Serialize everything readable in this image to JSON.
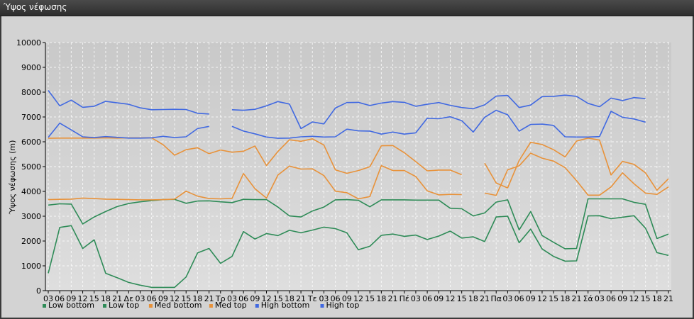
{
  "window": {
    "title": "Ύψος νέφωσης"
  },
  "chart_data": {
    "type": "line",
    "title": "",
    "ylabel": "Ύψος νέφωσης (m)",
    "xlabel": "",
    "ylim": [
      0,
      10000
    ],
    "yticks": [
      0,
      1000,
      2000,
      3000,
      4000,
      5000,
      6000,
      7000,
      8000,
      9000,
      10000
    ],
    "grid": true,
    "legend_position": "bottom-left",
    "x_tick_labels": [
      "03",
      "06",
      "09",
      "12",
      "15",
      "18",
      "21",
      "Δε",
      "03",
      "06",
      "09",
      "12",
      "15",
      "18",
      "21",
      "Τρ",
      "03",
      "06",
      "09",
      "12",
      "15",
      "18",
      "21",
      "Τε",
      "03",
      "06",
      "09",
      "12",
      "15",
      "18",
      "21",
      "Πέ",
      "03",
      "06",
      "09",
      "12",
      "15",
      "18",
      "21",
      "Πα",
      "03",
      "06",
      "09",
      "12",
      "15",
      "18",
      "21",
      "Σά",
      "03",
      "06",
      "09",
      "12",
      "15",
      "18",
      "21"
    ],
    "series": [
      {
        "name": "Low bottom",
        "color": "#2e8b57",
        "values": [
          700,
          2550,
          2620,
          1700,
          2050,
          700,
          520,
          330,
          220,
          130,
          130,
          130,
          550,
          1520,
          1700,
          1100,
          1380,
          2380,
          2080,
          2300,
          2220,
          2430,
          2330,
          2440,
          2560,
          2500,
          2330,
          1650,
          1790,
          2230,
          2280,
          2190,
          2240,
          2060,
          2200,
          2400,
          2120,
          2170,
          1980,
          2970,
          3000,
          1930,
          2480,
          1680,
          1380,
          1190,
          1200,
          3010,
          3020,
          2900,
          2960,
          3020,
          2520,
          1530,
          1420
        ]
      },
      {
        "name": "Low top",
        "color": "#2e8b57",
        "values": [
          3450,
          3500,
          3490,
          2690,
          2970,
          3190,
          3390,
          3510,
          3580,
          3630,
          3670,
          3680,
          3520,
          3610,
          3620,
          3580,
          3550,
          3680,
          3670,
          3670,
          3370,
          3010,
          2970,
          3210,
          3370,
          3660,
          3670,
          3640,
          3380,
          3660,
          3660,
          3660,
          3650,
          3650,
          3650,
          3320,
          3300,
          3010,
          3130,
          3570,
          3660,
          2450,
          3190,
          2220,
          1950,
          1690,
          1700,
          3700,
          3700,
          3700,
          3700,
          3560,
          3480,
          2100,
          2280
        ]
      },
      {
        "name": "Med bottom",
        "color": "#e8923a",
        "values": [
          3670,
          3680,
          3690,
          3730,
          3710,
          3690,
          3680,
          3670,
          3660,
          3660,
          3670,
          3690,
          4010,
          3810,
          3710,
          3700,
          3720,
          4720,
          4110,
          3730,
          4660,
          5020,
          4900,
          4910,
          4640,
          4010,
          3950,
          3700,
          3790,
          5040,
          4840,
          4840,
          4600,
          4020,
          3860,
          3880,
          3870,
          null,
          3930,
          3840,
          4870,
          5030,
          5540,
          5340,
          5220,
          4960,
          4430,
          3850,
          3850,
          4180,
          4750,
          4310,
          3930,
          3880,
          4180
        ]
      },
      {
        "name": "Med top",
        "color": "#e8923a",
        "values": [
          6140,
          6150,
          6150,
          6150,
          6150,
          6160,
          6150,
          6160,
          6160,
          6160,
          5880,
          5460,
          5680,
          5760,
          5520,
          5670,
          5580,
          5620,
          5830,
          5040,
          5610,
          6080,
          6020,
          6120,
          5870,
          4870,
          4730,
          4840,
          4990,
          5840,
          5850,
          5560,
          5200,
          4830,
          4860,
          4860,
          4670,
          null,
          5140,
          4340,
          4140,
          5250,
          5980,
          5890,
          5680,
          5390,
          6030,
          6150,
          6070,
          4660,
          5210,
          5090,
          4750,
          4050,
          4510
        ]
      },
      {
        "name": "High bottom",
        "color": "#4169e1",
        "values": [
          6180,
          6750,
          6480,
          6200,
          6170,
          6210,
          6180,
          6150,
          6150,
          6160,
          6220,
          6170,
          6200,
          6530,
          6620,
          null,
          6620,
          6430,
          6320,
          6190,
          6140,
          6150,
          6200,
          6220,
          6190,
          6200,
          6510,
          6440,
          6430,
          6310,
          6390,
          6310,
          6360,
          6950,
          6930,
          7010,
          6850,
          6390,
          6990,
          7270,
          7090,
          6430,
          6700,
          6710,
          6660,
          6200,
          6190,
          6190,
          6210,
          7230,
          6990,
          6920,
          6790,
          null,
          null
        ]
      },
      {
        "name": "High top",
        "color": "#4169e1",
        "values": [
          8070,
          7450,
          7680,
          7390,
          7430,
          7630,
          7570,
          7510,
          7370,
          7290,
          7300,
          7310,
          7300,
          7150,
          7120,
          null,
          7290,
          7270,
          7310,
          7450,
          7620,
          7520,
          6530,
          6800,
          6720,
          7360,
          7580,
          7590,
          7460,
          7560,
          7620,
          7590,
          7430,
          7510,
          7580,
          7470,
          7380,
          7330,
          7490,
          7840,
          7870,
          7380,
          7480,
          7820,
          7830,
          7880,
          7830,
          7550,
          7410,
          7760,
          7660,
          7780,
          7740,
          null,
          null
        ]
      }
    ]
  }
}
